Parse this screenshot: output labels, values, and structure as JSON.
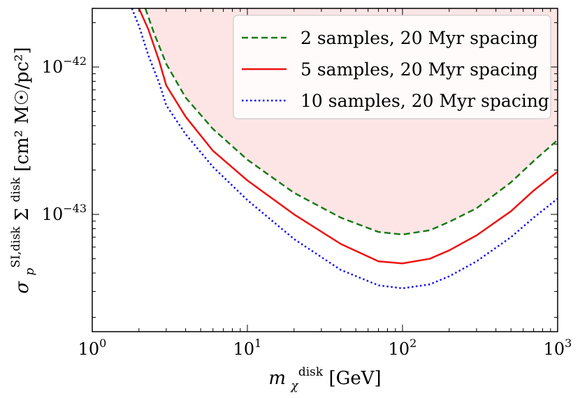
{
  "chart_data": {
    "type": "line",
    "x_scale": "log",
    "y_scale": "log",
    "xlim": [
      1,
      1000
    ],
    "ylim": [
      1.6e-44,
      2.5e-42
    ],
    "grid": false,
    "legend_placement": "top-right",
    "xlabel": {
      "base": "m",
      "sub": "χ",
      "sup": "disk",
      "unit": " [GeV]"
    },
    "ylabel": {
      "base": "σ",
      "sub": "p",
      "sup": "SI,disk",
      "mid": "Σ",
      "mid_sup": "disk",
      "unit": " [cm² M☉/pc²]"
    },
    "x_ticks": [
      {
        "value": 1,
        "base": "10",
        "exp": "0"
      },
      {
        "value": 10,
        "base": "10",
        "exp": "1"
      },
      {
        "value": 100,
        "base": "10",
        "exp": "2"
      },
      {
        "value": 1000,
        "base": "10",
        "exp": "3"
      }
    ],
    "y_ticks": [
      {
        "value": 1e-42,
        "base": "10",
        "exp": "−42"
      },
      {
        "value": 1e-43,
        "base": "10",
        "exp": "−43"
      }
    ],
    "excluded_region": {
      "color": "#fde5e5",
      "bound_series": 0
    },
    "series": [
      {
        "name": "2 samples, 20 Myr spacing",
        "color": "#1a7a1a",
        "dash": "dashed",
        "x": [
          2.2,
          2.5,
          3,
          4,
          6,
          10,
          20,
          40,
          70,
          100,
          150,
          200,
          300,
          500,
          700,
          1000
        ],
        "y": [
          2.5e-42,
          1.7e-42,
          1.05e-42,
          6.2e-43,
          3.8e-43,
          2.35e-43,
          1.4e-43,
          9.5e-44,
          7.6e-44,
          7.3e-44,
          7.8e-44,
          8.9e-44,
          1.1e-43,
          1.65e-43,
          2.3e-43,
          3.2e-43
        ]
      },
      {
        "name": "5 samples, 20 Myr spacing",
        "color": "#ee1111",
        "dash": "solid",
        "x": [
          2.0,
          2.3,
          2.7,
          3.0,
          4,
          6,
          10,
          20,
          40,
          70,
          100,
          150,
          200,
          300,
          500,
          700,
          1000
        ],
        "y": [
          2.5e-42,
          1.8e-42,
          1.1e-42,
          7.5e-43,
          4.6e-43,
          2.7e-43,
          1.7e-43,
          1e-43,
          6.3e-44,
          4.8e-44,
          4.65e-44,
          5e-44,
          5.7e-44,
          7.2e-44,
          1.05e-43,
          1.45e-43,
          1.95e-43
        ]
      },
      {
        "name": "10 samples, 20 Myr spacing",
        "color": "#1111ee",
        "dash": "dotted",
        "x": [
          1.8,
          2.0,
          2.3,
          2.7,
          3.0,
          4,
          6,
          10,
          20,
          40,
          70,
          100,
          150,
          200,
          300,
          500,
          700,
          1000
        ],
        "y": [
          2.5e-42,
          1.9e-42,
          1.2e-42,
          7.8e-43,
          5.5e-43,
          3.5e-43,
          2.1e-43,
          1.25e-43,
          6.8e-44,
          4.2e-44,
          3.3e-44,
          3.15e-44,
          3.35e-44,
          3.8e-44,
          4.8e-44,
          7e-44,
          9.5e-44,
          1.28e-43
        ]
      }
    ]
  }
}
